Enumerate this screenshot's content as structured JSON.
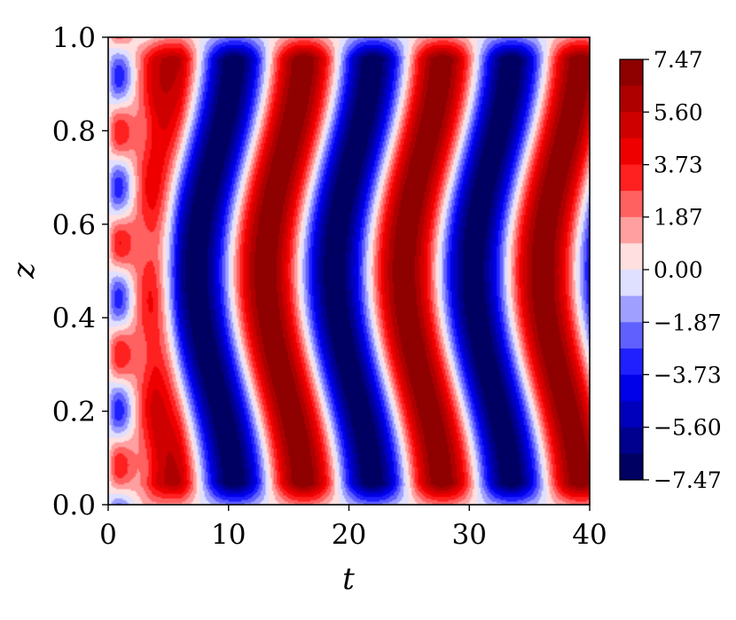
{
  "chart_data": {
    "type": "heatmap",
    "title": "",
    "xlabel": "t",
    "ylabel": "z",
    "xlim": [
      0,
      40
    ],
    "ylim": [
      0.0,
      1.0
    ],
    "x_ticks": [
      0,
      10,
      20,
      30,
      40
    ],
    "x_tick_labels": [
      "0",
      "10",
      "20",
      "30",
      "40"
    ],
    "y_ticks": [
      0.0,
      0.2,
      0.4,
      0.6,
      0.8,
      1.0
    ],
    "y_tick_labels": [
      "0.0",
      "0.2",
      "0.4",
      "0.6",
      "0.8",
      "1.0"
    ],
    "colormap": "seismic",
    "colorbar": {
      "range": [
        -7.47,
        7.47
      ],
      "ticks": [
        7.47,
        5.6,
        3.73,
        1.87,
        0.0,
        -1.87,
        -3.73,
        -5.6,
        -7.47
      ],
      "tick_labels": [
        "7.47",
        "5.60",
        "3.73",
        "1.87",
        "0.00",
        "−1.87",
        "−3.73",
        "−5.60",
        "−7.47"
      ],
      "levels": 16
    },
    "field": {
      "description": "Standing-wave pattern; sign alternates in t with period about 11.5; bands bulge in t toward z = 0.5",
      "period_t": 11.5,
      "amplitude_max": 7.47
    }
  }
}
